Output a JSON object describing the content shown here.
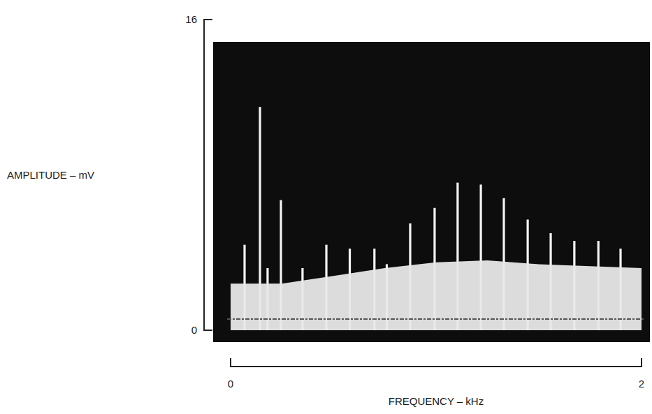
{
  "chart_data": {
    "type": "bar",
    "x_label": "FREQUENCY – kHz",
    "y_label": "AMPLITUDE – mV",
    "xlim": [
      0,
      2
    ],
    "xticks": [
      0,
      2
    ],
    "ylim": [
      0,
      16
    ],
    "yticks": [
      0,
      16
    ],
    "grid": false,
    "series": [
      {
        "type": "bar",
        "color": "#f4f4f4",
        "x": [
          0.068,
          0.143,
          0.18,
          0.245,
          0.35,
          0.466,
          0.58,
          0.7,
          0.76,
          0.874,
          0.993,
          1.105,
          1.218,
          1.33,
          1.446,
          1.558,
          1.673,
          1.79,
          1.898
        ],
        "values": [
          4.4,
          11.5,
          3.2,
          6.7,
          3.2,
          4.4,
          4.2,
          4.2,
          3.4,
          5.5,
          6.3,
          7.6,
          7.5,
          6.8,
          5.7,
          5.0,
          4.6,
          4.6,
          4.2
        ]
      },
      {
        "type": "area",
        "color": "#e8e8e8",
        "x": [
          0,
          0.25,
          0.5,
          0.75,
          1.0,
          1.25,
          1.5,
          1.75,
          2.0
        ],
        "values": [
          2.4,
          2.4,
          2.8,
          3.2,
          3.5,
          3.6,
          3.4,
          3.3,
          3.2
        ]
      }
    ]
  }
}
